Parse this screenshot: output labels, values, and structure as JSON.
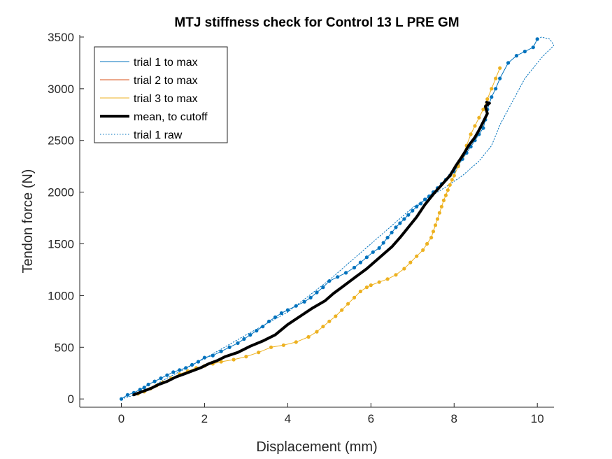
{
  "chart_data": {
    "type": "line",
    "title": "MTJ stiffness check for Control 13 L PRE GM",
    "xlabel": "Displacement (mm)",
    "ylabel": "Tendon force (N)",
    "xlim": [
      -1,
      10.4
    ],
    "ylim": [
      -80,
      3520
    ],
    "xticks": [
      0,
      2,
      4,
      6,
      8,
      10
    ],
    "yticks": [
      0,
      500,
      1000,
      1500,
      2000,
      2500,
      3000,
      3500
    ],
    "grid": false,
    "legend_position": "top-left",
    "series": [
      {
        "name": "trial 1 to max",
        "color": "#0072BD",
        "style": "solid-with-markers",
        "x": [
          0.0,
          0.15,
          0.3,
          0.45,
          0.55,
          0.65,
          0.8,
          0.95,
          1.1,
          1.25,
          1.4,
          1.55,
          1.7,
          1.85,
          2.0,
          2.2,
          2.4,
          2.6,
          2.8,
          2.95,
          3.1,
          3.25,
          3.4,
          3.55,
          3.7,
          3.85,
          4.0,
          4.2,
          4.4,
          4.55,
          4.7,
          4.85,
          5.0,
          5.2,
          5.4,
          5.6,
          5.75,
          5.9,
          6.05,
          6.2,
          6.3,
          6.4,
          6.5,
          6.6,
          6.7,
          6.8,
          6.9,
          7.0,
          7.1,
          7.2,
          7.3,
          7.4,
          7.5,
          7.6,
          7.7,
          7.8,
          7.9,
          8.0,
          8.1,
          8.2,
          8.3,
          8.4,
          8.5,
          8.6,
          8.7,
          8.75,
          8.8,
          8.9,
          9.0,
          9.1,
          9.3,
          9.5,
          9.7,
          9.9,
          10.0
        ],
        "y": [
          0,
          40,
          60,
          90,
          110,
          140,
          170,
          200,
          230,
          260,
          280,
          300,
          330,
          360,
          400,
          420,
          460,
          500,
          540,
          580,
          620,
          660,
          700,
          750,
          790,
          830,
          860,
          900,
          940,
          980,
          1030,
          1080,
          1140,
          1180,
          1220,
          1270,
          1320,
          1370,
          1420,
          1460,
          1510,
          1560,
          1610,
          1660,
          1700,
          1740,
          1780,
          1820,
          1860,
          1890,
          1930,
          1960,
          2000,
          2040,
          2080,
          2120,
          2160,
          2200,
          2260,
          2320,
          2380,
          2440,
          2500,
          2560,
          2620,
          2700,
          2800,
          2920,
          3000,
          3100,
          3250,
          3320,
          3360,
          3400,
          3480
        ]
      },
      {
        "name": "trial 2 to max",
        "color": "#D95319",
        "style": "solid",
        "x": [],
        "y": []
      },
      {
        "name": "trial 3 to max",
        "color": "#EDB120",
        "style": "solid-with-markers",
        "x": [
          0.4,
          0.55,
          0.7,
          0.85,
          1.0,
          1.2,
          1.4,
          1.6,
          1.8,
          2.0,
          2.2,
          2.4,
          2.7,
          3.0,
          3.3,
          3.6,
          3.9,
          4.2,
          4.5,
          4.7,
          4.85,
          5.0,
          5.15,
          5.3,
          5.45,
          5.6,
          5.75,
          5.9,
          6.0,
          6.2,
          6.4,
          6.6,
          6.8,
          6.95,
          7.1,
          7.25,
          7.35,
          7.45,
          7.5,
          7.55,
          7.6,
          7.65,
          7.7,
          7.75,
          7.8,
          7.85,
          7.9,
          7.95,
          8.0,
          8.1,
          8.2,
          8.3,
          8.4,
          8.5,
          8.6,
          8.7,
          8.8,
          8.9,
          9.0,
          9.1
        ],
        "y": [
          50,
          70,
          100,
          130,
          160,
          200,
          240,
          270,
          300,
          320,
          340,
          360,
          380,
          410,
          450,
          500,
          520,
          550,
          600,
          650,
          700,
          750,
          800,
          860,
          920,
          980,
          1040,
          1080,
          1100,
          1130,
          1160,
          1200,
          1260,
          1320,
          1380,
          1440,
          1500,
          1560,
          1620,
          1680,
          1740,
          1800,
          1860,
          1920,
          1970,
          2020,
          2070,
          2120,
          2160,
          2250,
          2350,
          2450,
          2560,
          2640,
          2720,
          2800,
          2900,
          3000,
          3100,
          3200
        ]
      },
      {
        "name": "mean, to cutoff",
        "color": "#000000",
        "style": "thick-solid",
        "x": [
          0.3,
          0.5,
          0.7,
          0.9,
          1.1,
          1.3,
          1.5,
          1.7,
          1.9,
          2.1,
          2.3,
          2.5,
          2.8,
          3.1,
          3.4,
          3.7,
          4.0,
          4.3,
          4.6,
          4.9,
          5.1,
          5.3,
          5.5,
          5.7,
          5.9,
          6.1,
          6.3,
          6.5,
          6.7,
          6.9,
          7.1,
          7.3,
          7.5,
          7.7,
          7.9,
          8.05,
          8.2,
          8.35,
          8.5,
          8.6,
          8.7,
          8.8,
          8.75,
          8.85,
          8.78
        ],
        "y": [
          40,
          70,
          100,
          140,
          170,
          210,
          240,
          270,
          300,
          340,
          370,
          410,
          450,
          510,
          560,
          620,
          720,
          800,
          880,
          950,
          1020,
          1080,
          1140,
          1200,
          1260,
          1330,
          1400,
          1470,
          1560,
          1660,
          1760,
          1880,
          1980,
          2070,
          2160,
          2260,
          2350,
          2450,
          2530,
          2600,
          2680,
          2760,
          2830,
          2860,
          2870
        ]
      },
      {
        "name": "trial 1 raw",
        "color": "#0072BD",
        "style": "dotted",
        "x": [
          0.0,
          0.5,
          1.0,
          2.0,
          3.0,
          4.0,
          5.0,
          6.0,
          7.0,
          7.8,
          8.2,
          8.6,
          8.9,
          9.1,
          9.3,
          9.5,
          9.7,
          9.9,
          10.1,
          10.3,
          10.4,
          10.3,
          10.1,
          10.0
        ],
        "y": [
          0,
          60,
          180,
          390,
          620,
          840,
          1150,
          1500,
          1850,
          2050,
          2160,
          2300,
          2450,
          2650,
          2800,
          2950,
          3100,
          3200,
          3300,
          3380,
          3420,
          3480,
          3500,
          3480
        ]
      }
    ]
  }
}
